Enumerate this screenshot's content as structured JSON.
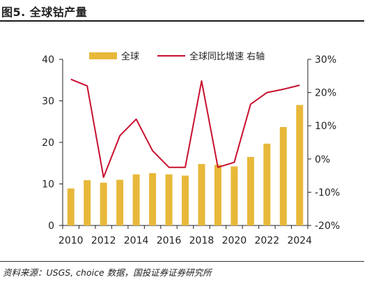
{
  "figure_title": "图5. 全球钴产量",
  "source_note": "资料来源：USGS, choice 数据，国投证券证券研究所",
  "colors": {
    "bar": "#E8B83A",
    "line": "#C8102E",
    "axis": "#222222"
  },
  "chart_data": {
    "type": "bar+line",
    "categories": [
      "2010",
      "2011",
      "2012",
      "2013",
      "2014",
      "2015",
      "2016",
      "2017",
      "2018",
      "2019",
      "2020",
      "2021",
      "2022",
      "2023",
      "2024"
    ],
    "x_tick_labels": [
      "2010",
      "2012",
      "2014",
      "2016",
      "2018",
      "2020",
      "2022",
      "2024"
    ],
    "series": [
      {
        "name": "全球",
        "type": "bar",
        "axis": "left",
        "values": [
          8.9,
          10.9,
          10.3,
          11.0,
          12.3,
          12.6,
          12.3,
          12.0,
          14.8,
          14.6,
          14.2,
          16.5,
          19.7,
          23.7,
          29.0
        ]
      },
      {
        "name": "全球同比增速 右轴",
        "type": "line",
        "axis": "right",
        "values": [
          24,
          22,
          -5.5,
          7,
          12,
          2.5,
          -2.5,
          -2.5,
          23.5,
          -2.5,
          -1,
          16.5,
          20,
          21,
          22.2
        ]
      }
    ],
    "y_left": {
      "ylim": [
        0,
        40
      ],
      "ticks": [
        0,
        10,
        20,
        30,
        40
      ],
      "tick_labels": [
        "0",
        "10",
        "20",
        "30",
        "40"
      ]
    },
    "y_right": {
      "ylim": [
        -20,
        30
      ],
      "ticks": [
        -20,
        -10,
        0,
        10,
        20,
        30
      ],
      "tick_labels": [
        "-20%",
        "-10%",
        "0%",
        "10%",
        "20%",
        "30%"
      ]
    },
    "legend_position": "top",
    "grid": false
  }
}
